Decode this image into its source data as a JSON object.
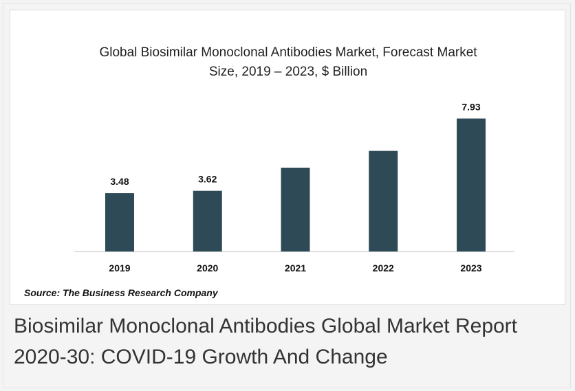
{
  "chart_data": {
    "type": "bar",
    "title": "Global Biosimilar Monoclonal Antibodies Market, Forecast Market Size, 2019 – 2023, $ Billion",
    "categories": [
      "2019",
      "2020",
      "2021",
      "2022",
      "2023"
    ],
    "values": [
      3.48,
      3.62,
      5.0,
      6.0,
      7.93
    ],
    "value_labels": [
      "3.48",
      "3.62",
      null,
      null,
      "7.93"
    ],
    "color": "#2e4a56",
    "source": "Source: The Business Research Company"
  },
  "caption": "Biosimilar Monoclonal Antibodies Global Market Report 2020-30: COVID-19 Growth And Change"
}
